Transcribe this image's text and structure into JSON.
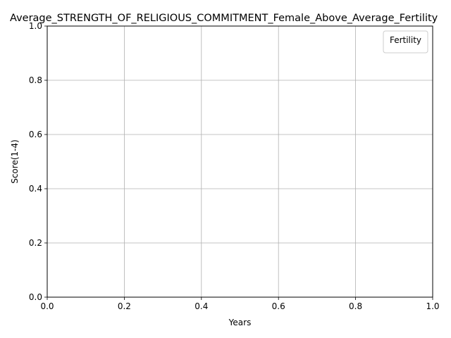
{
  "chart_data": {
    "type": "line",
    "title": "Average_STRENGTH_OF_RELIGIOUS_COMMITMENT_Female_Above_Average_Fertility",
    "xlabel": "Years",
    "ylabel": "Score(1-4)",
    "xlim": [
      0.0,
      1.0
    ],
    "ylim": [
      0.0,
      1.0
    ],
    "x_ticks": [
      "0.0",
      "0.2",
      "0.4",
      "0.6",
      "0.8",
      "1.0"
    ],
    "y_ticks": [
      "0.0",
      "0.2",
      "0.4",
      "0.6",
      "0.8",
      "1.0"
    ],
    "grid": true,
    "legend": {
      "title": "Fertility",
      "placement": "top-right",
      "entries": []
    },
    "series": [],
    "colors": {
      "grid": "#b0b0b0",
      "axis": "#000000",
      "legend_border": "#cccccc"
    }
  }
}
